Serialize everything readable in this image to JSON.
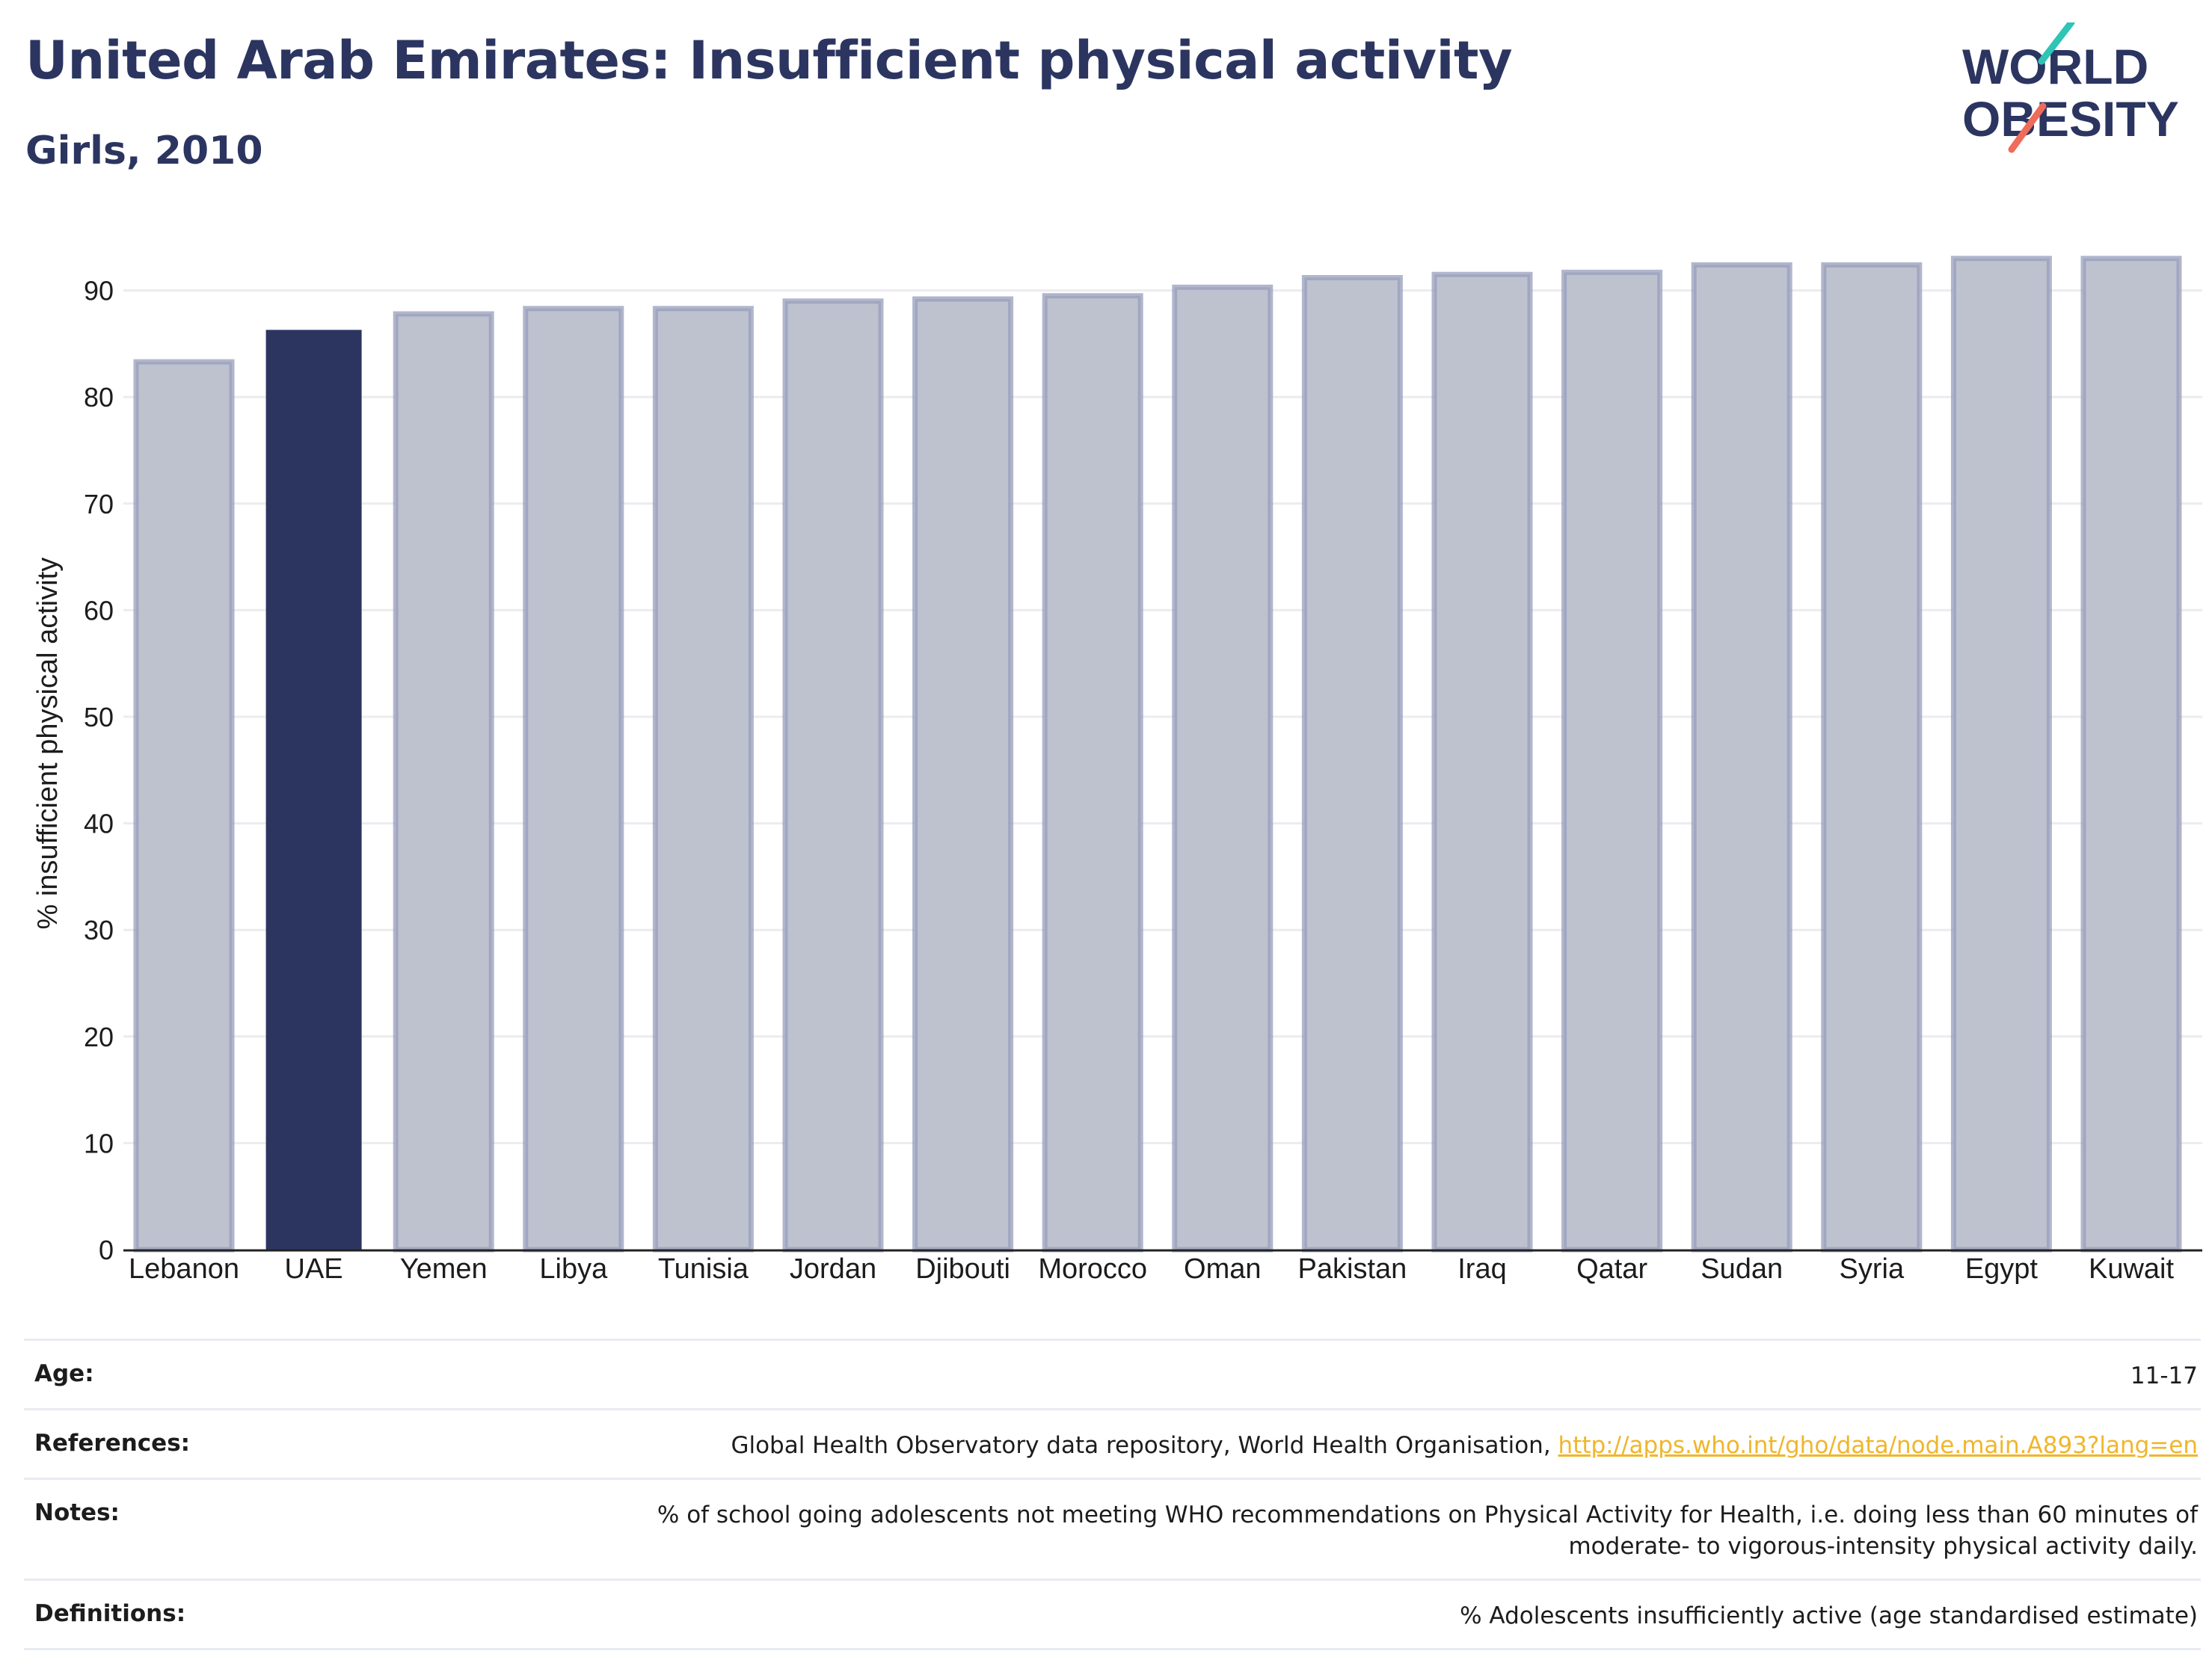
{
  "header": {
    "title": "United Arab Emirates: Insufficient physical activity",
    "subtitle": "Girls, 2010"
  },
  "logo": {
    "line1": "WORLD",
    "line2": "OBESITY",
    "colors": {
      "text": "#2b3560",
      "teal": "#2ec4b6",
      "coral": "#ef6b5a"
    }
  },
  "chart_data": {
    "type": "bar",
    "categories": [
      "Lebanon",
      "UAE",
      "Yemen",
      "Libya",
      "Tunisia",
      "Jordan",
      "Djibouti",
      "Morocco",
      "Oman",
      "Pakistan",
      "Iraq",
      "Qatar",
      "Sudan",
      "Syria",
      "Egypt",
      "Kuwait"
    ],
    "values": [
      83.3,
      86.3,
      87.8,
      88.3,
      88.3,
      89.0,
      89.2,
      89.5,
      90.3,
      91.2,
      91.5,
      91.7,
      92.4,
      92.4,
      93.0,
      93.0
    ],
    "highlight": "UAE",
    "title": "",
    "xlabel": "",
    "ylabel": "% insufficient physical activity",
    "ylim": [
      0,
      95
    ],
    "yticks": [
      0,
      10,
      20,
      30,
      40,
      50,
      60,
      70,
      80,
      90
    ],
    "grid": true,
    "legend": "none",
    "colors": {
      "highlight": "#2b3560",
      "bar_fill": "#bec2cf",
      "bar_outline": "#979dbb",
      "grid": "#ececf0",
      "axis": "#222222"
    }
  },
  "info": {
    "age": {
      "label": "Age:",
      "value": "11-17"
    },
    "references": {
      "label": "References:",
      "text": "Global Health Observatory data repository, World Health Organisation, ",
      "link": "http://apps.who.int/gho/data/node.main.A893?lang=en"
    },
    "notes": {
      "label": "Notes:",
      "line1": "% of school going adolescents not meeting WHO recommendations on Physical Activity for Health, i.e. doing less than 60 minutes of",
      "line2": "moderate- to vigorous-intensity physical activity daily."
    },
    "definitions": {
      "label": "Definitions:",
      "value": "% Adolescents insufficiently active (age standardised estimate)"
    }
  }
}
